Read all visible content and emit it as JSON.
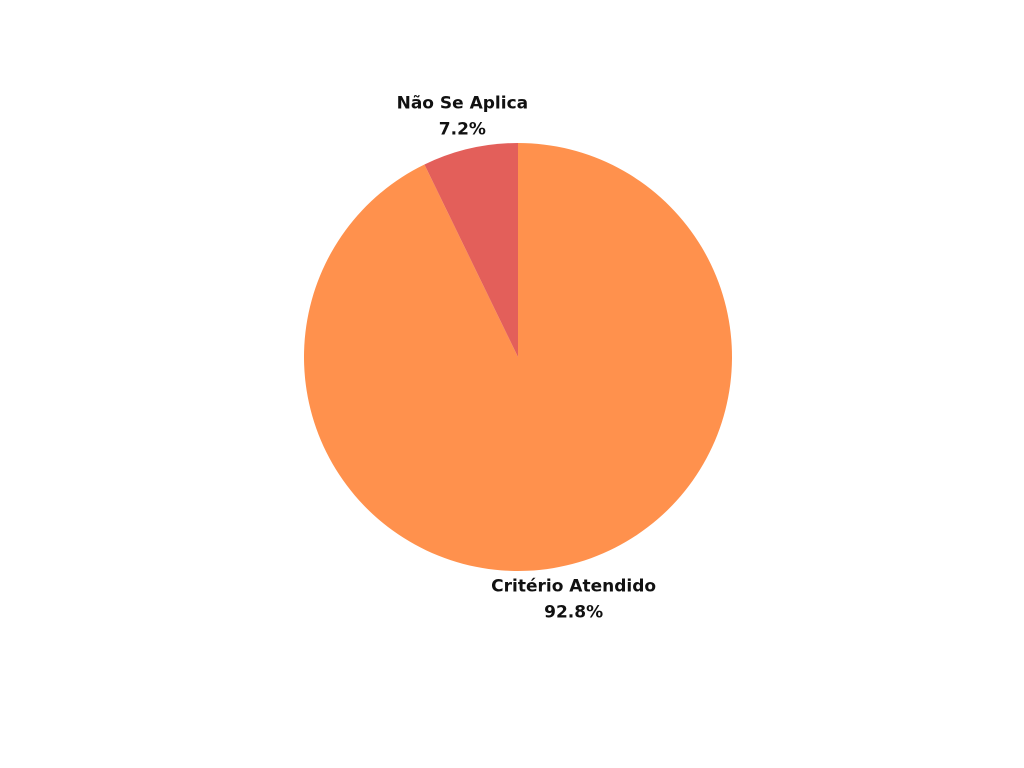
{
  "chart_data": {
    "type": "pie",
    "start_angle_deg": 0,
    "direction": "clockwise",
    "slices": [
      {
        "label": "Critério Atendido",
        "value": 92.8,
        "percent_label": "92.8%",
        "color": "#ff914d"
      },
      {
        "label": "Não Se Aplica",
        "value": 7.2,
        "percent_label": "7.2%",
        "color": "#e35f5a"
      }
    ]
  }
}
